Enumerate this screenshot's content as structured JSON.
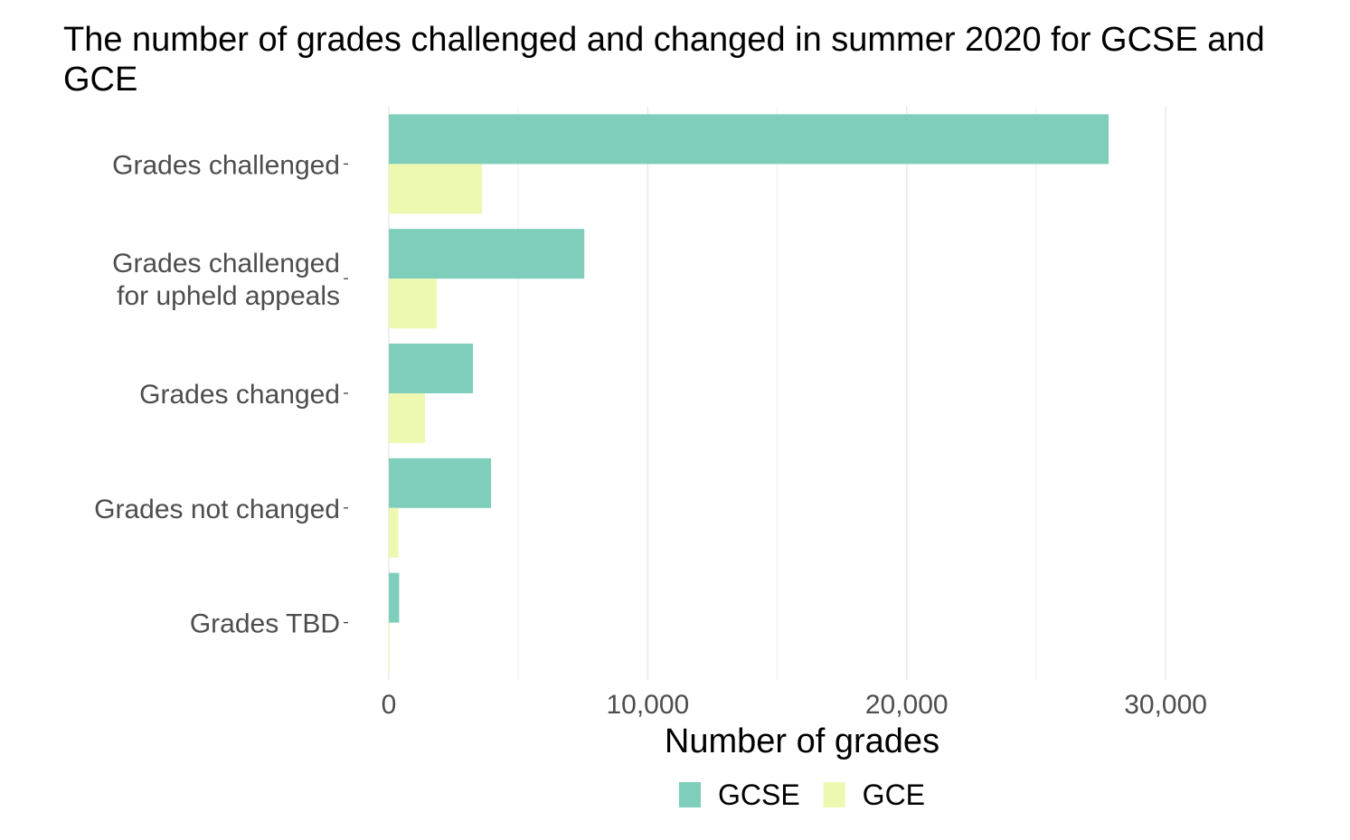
{
  "chart_data": {
    "type": "bar",
    "orientation": "horizontal",
    "title": "The number of grades challenged and changed in summer 2020 for GCSE and GCE",
    "xlabel": "Number of grades",
    "ylabel": "",
    "categories": [
      "Grades challenged",
      "Grades challenged for upheld appeals",
      "Grades changed",
      "Grades not changed",
      "Grades TBD"
    ],
    "category_lines": [
      [
        "Grades challenged"
      ],
      [
        "Grades challenged",
        "for upheld appeals"
      ],
      [
        "Grades changed"
      ],
      [
        "Grades not changed"
      ],
      [
        "Grades TBD"
      ]
    ],
    "series": [
      {
        "name": "GCSE",
        "color": "#7fcdbb",
        "values": [
          27800,
          7550,
          3250,
          3950,
          400
        ]
      },
      {
        "name": "GCE",
        "color": "#edf8b1",
        "values": [
          3600,
          1850,
          1400,
          370,
          40
        ]
      }
    ],
    "xlim": [
      0,
      33000
    ],
    "major_ticks": [
      0,
      10000,
      20000,
      30000
    ],
    "tick_labels": [
      "0",
      "10,000",
      "20,000",
      "30,000"
    ],
    "minor_ticks": [
      5000,
      15000,
      25000
    ],
    "grid": true,
    "legend_position": "bottom"
  }
}
